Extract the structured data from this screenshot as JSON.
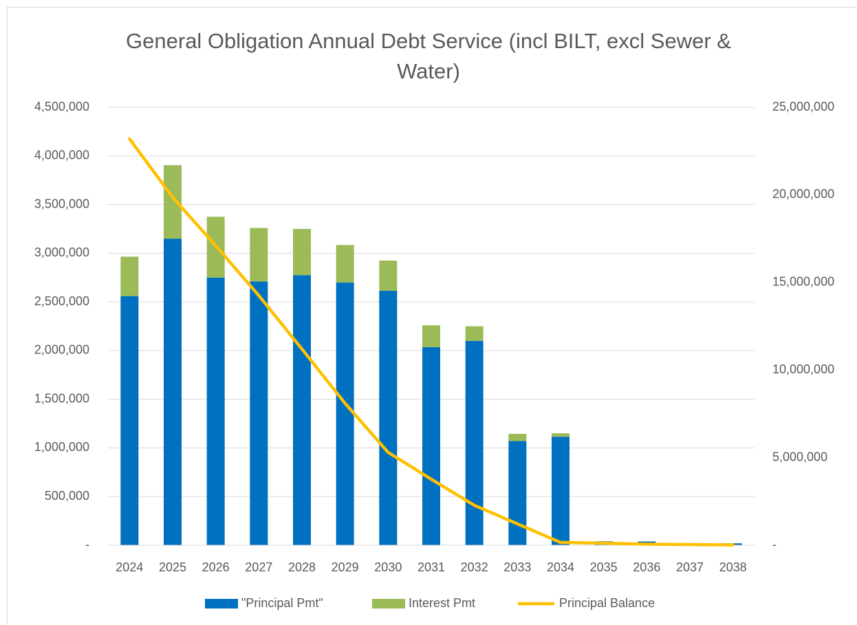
{
  "chart_data": {
    "type": "bar",
    "stacked": true,
    "title": "General Obligation Annual Debt Service (incl BILT, excl Sewer & Water)",
    "categories": [
      "2024",
      "2025",
      "2026",
      "2027",
      "2028",
      "2029",
      "2030",
      "2031",
      "2032",
      "2033",
      "2034",
      "2035",
      "2036",
      "2037",
      "2038"
    ],
    "series": [
      {
        "name": "\"Principal Pmt\"",
        "color": "#0070c0",
        "type": "bar",
        "values": [
          2560000,
          3150000,
          2750000,
          2710000,
          2775000,
          2700000,
          2615000,
          2035000,
          2100000,
          1070000,
          1115000,
          40000,
          38000,
          20000,
          20000
        ]
      },
      {
        "name": "Interest Pmt",
        "color": "#9bbb59",
        "type": "bar",
        "values": [
          405000,
          755000,
          625000,
          550000,
          475000,
          385000,
          310000,
          225000,
          150000,
          75000,
          35000,
          2000,
          2000,
          1000,
          1000
        ]
      },
      {
        "name": "Principal Balance",
        "color": "#ffc000",
        "type": "line",
        "axis": "y2",
        "values": [
          23200000,
          19860000,
          17100000,
          14250000,
          11200000,
          8100000,
          5300000,
          3770000,
          2280000,
          1220000,
          160000,
          120000,
          60000,
          40000,
          20000
        ]
      }
    ],
    "ylim": [
      0,
      4500000
    ],
    "yticks": [
      {
        "value": 0,
        "label": "-"
      },
      {
        "value": 500000,
        "label": "500,000"
      },
      {
        "value": 1000000,
        "label": "1,000,000"
      },
      {
        "value": 1500000,
        "label": "1,500,000"
      },
      {
        "value": 2000000,
        "label": "2,000,000"
      },
      {
        "value": 2500000,
        "label": "2,500,000"
      },
      {
        "value": 3000000,
        "label": "3,000,000"
      },
      {
        "value": 3500000,
        "label": "3,500,000"
      },
      {
        "value": 4000000,
        "label": "4,000,000"
      },
      {
        "value": 4500000,
        "label": "4,500,000"
      }
    ],
    "y2lim": [
      0,
      25000000
    ],
    "y2ticks": [
      {
        "value": 0,
        "label": "-"
      },
      {
        "value": 5000000,
        "label": "5,000,000"
      },
      {
        "value": 10000000,
        "label": "10,000,000"
      },
      {
        "value": 15000000,
        "label": "15,000,000"
      },
      {
        "value": 20000000,
        "label": "20,000,000"
      },
      {
        "value": 25000000,
        "label": "25,000,000"
      }
    ],
    "grid": true,
    "legend": "bottom"
  }
}
